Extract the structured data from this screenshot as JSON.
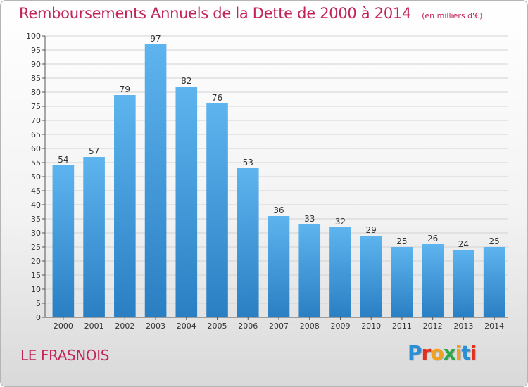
{
  "title": "Remboursements Annuels de la Dette de 2000 à 2014",
  "subtitle": "(en milliers d'€)",
  "commune": "LE FRASNOIS",
  "logo": {
    "letters": [
      "P",
      "r",
      "o",
      "x",
      "i",
      "t",
      "i"
    ],
    "colors": [
      "#2a8fd6",
      "#e0301e",
      "#f2a11f",
      "#2aa84a",
      "#f2a11f",
      "#2a8fd6",
      "#e0301e"
    ]
  },
  "colors": {
    "title": "#c1235a",
    "bar_top": "#5db4ee",
    "bar_bottom": "#2a7fc3",
    "grid": "#d2d2d2",
    "axis": "#555555",
    "label": "#333333"
  },
  "chart_data": {
    "type": "bar",
    "title": "Remboursements Annuels de la Dette de 2000 à 2014",
    "subtitle": "(en milliers d'€)",
    "xlabel": "",
    "ylabel": "",
    "ylim": [
      0,
      100
    ],
    "ytick_step": 5,
    "grid": true,
    "categories": [
      "2000",
      "2001",
      "2002",
      "2003",
      "2004",
      "2005",
      "2006",
      "2007",
      "2008",
      "2009",
      "2010",
      "2011",
      "2012",
      "2013",
      "2014"
    ],
    "values": [
      54,
      57,
      79,
      97,
      82,
      76,
      53,
      36,
      33,
      32,
      29,
      25,
      26,
      24,
      25
    ]
  }
}
